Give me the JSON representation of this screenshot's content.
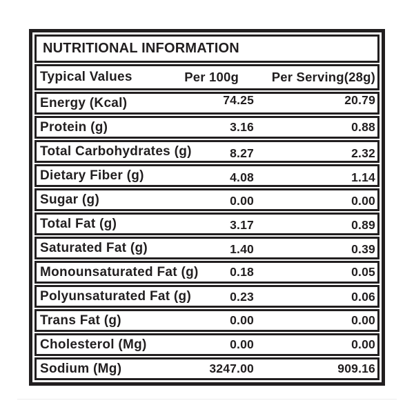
{
  "label": {
    "title": "NUTRITIONAL INFORMATION",
    "columns": {
      "name": "Typical Values",
      "per_100g": "Per 100g",
      "per_serving": "Per Serving(28g)"
    },
    "rows": [
      {
        "name": "Energy (Kcal)",
        "per_100g": "74.25",
        "per_serving": "20.79"
      },
      {
        "name": "Protein (g)",
        "per_100g": "3.16",
        "per_serving": "0.88"
      },
      {
        "name": "Total Carbohydrates (g)",
        "per_100g": "8.27",
        "per_serving": "2.32"
      },
      {
        "name": "Dietary Fiber (g)",
        "per_100g": "4.08",
        "per_serving": "1.14"
      },
      {
        "name": "Sugar (g)",
        "per_100g": "0.00",
        "per_serving": "0.00"
      },
      {
        "name": "Total Fat (g)",
        "per_100g": "3.17",
        "per_serving": "0.89"
      },
      {
        "name": "Saturated Fat (g)",
        "per_100g": "1.40",
        "per_serving": "0.39"
      },
      {
        "name": "Monounsaturated Fat (g)",
        "per_100g": "0.18",
        "per_serving": "0.05"
      },
      {
        "name": "Polyunsaturated Fat (g)",
        "per_100g": "0.23",
        "per_serving": "0.06"
      },
      {
        "name": "Trans Fat (g)",
        "per_100g": "0.00",
        "per_serving": "0.00"
      },
      {
        "name": "Cholesterol (Mg)",
        "per_100g": "0.00",
        "per_serving": "0.00"
      },
      {
        "name": "Sodium (Mg)",
        "per_100g": "3247.00",
        "per_serving": "909.16"
      }
    ]
  },
  "colors": {
    "border": "#211e1f",
    "text": "#211e1f",
    "background": "#ffffff",
    "photo_edge_line": "#ececec"
  }
}
